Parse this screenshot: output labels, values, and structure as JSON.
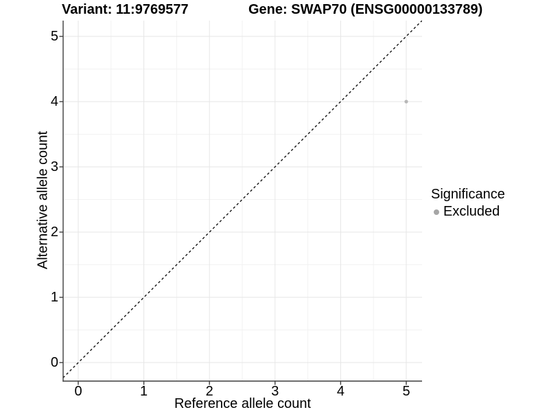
{
  "figure": {
    "title_left": "Variant: 11:9769577",
    "title_right": "Gene: SWAP70 (ENSG00000133789)"
  },
  "chart_data": {
    "type": "scatter",
    "title_left": "Variant: 11:9769577",
    "title_right": "Gene: SWAP70 (ENSG00000133789)",
    "xlabel": "Reference allele count",
    "ylabel": "Alternative allele count",
    "x_ticks": [
      "0",
      "1",
      "2",
      "3",
      "4",
      "5"
    ],
    "y_ticks": [
      "0",
      "1",
      "2",
      "3",
      "4",
      "5"
    ],
    "x_tick_values": [
      0,
      1,
      2,
      3,
      4,
      5
    ],
    "y_tick_values": [
      0,
      1,
      2,
      3,
      4,
      5
    ],
    "xlim": [
      -0.23,
      5.24
    ],
    "ylim": [
      -0.28,
      5.24
    ],
    "grid": "major+minor",
    "points": [
      {
        "x": 5,
        "y": 4,
        "series": "Excluded"
      }
    ],
    "reference_line": {
      "type": "identity",
      "equation": "y = x",
      "style": "dashed"
    },
    "legend": {
      "title": "Significance",
      "position": "right",
      "entries": [
        {
          "label": "Excluded",
          "color": "#a6a6a6"
        }
      ]
    },
    "colors": {
      "point": "#b7b7b7",
      "legend_dot": "#a6a6a6",
      "axis": "#3d3d3d",
      "grid_major": "#e6e6e6",
      "grid_minor": "#f2f2f2",
      "reference_line": "#111111",
      "text": "#000000"
    }
  }
}
